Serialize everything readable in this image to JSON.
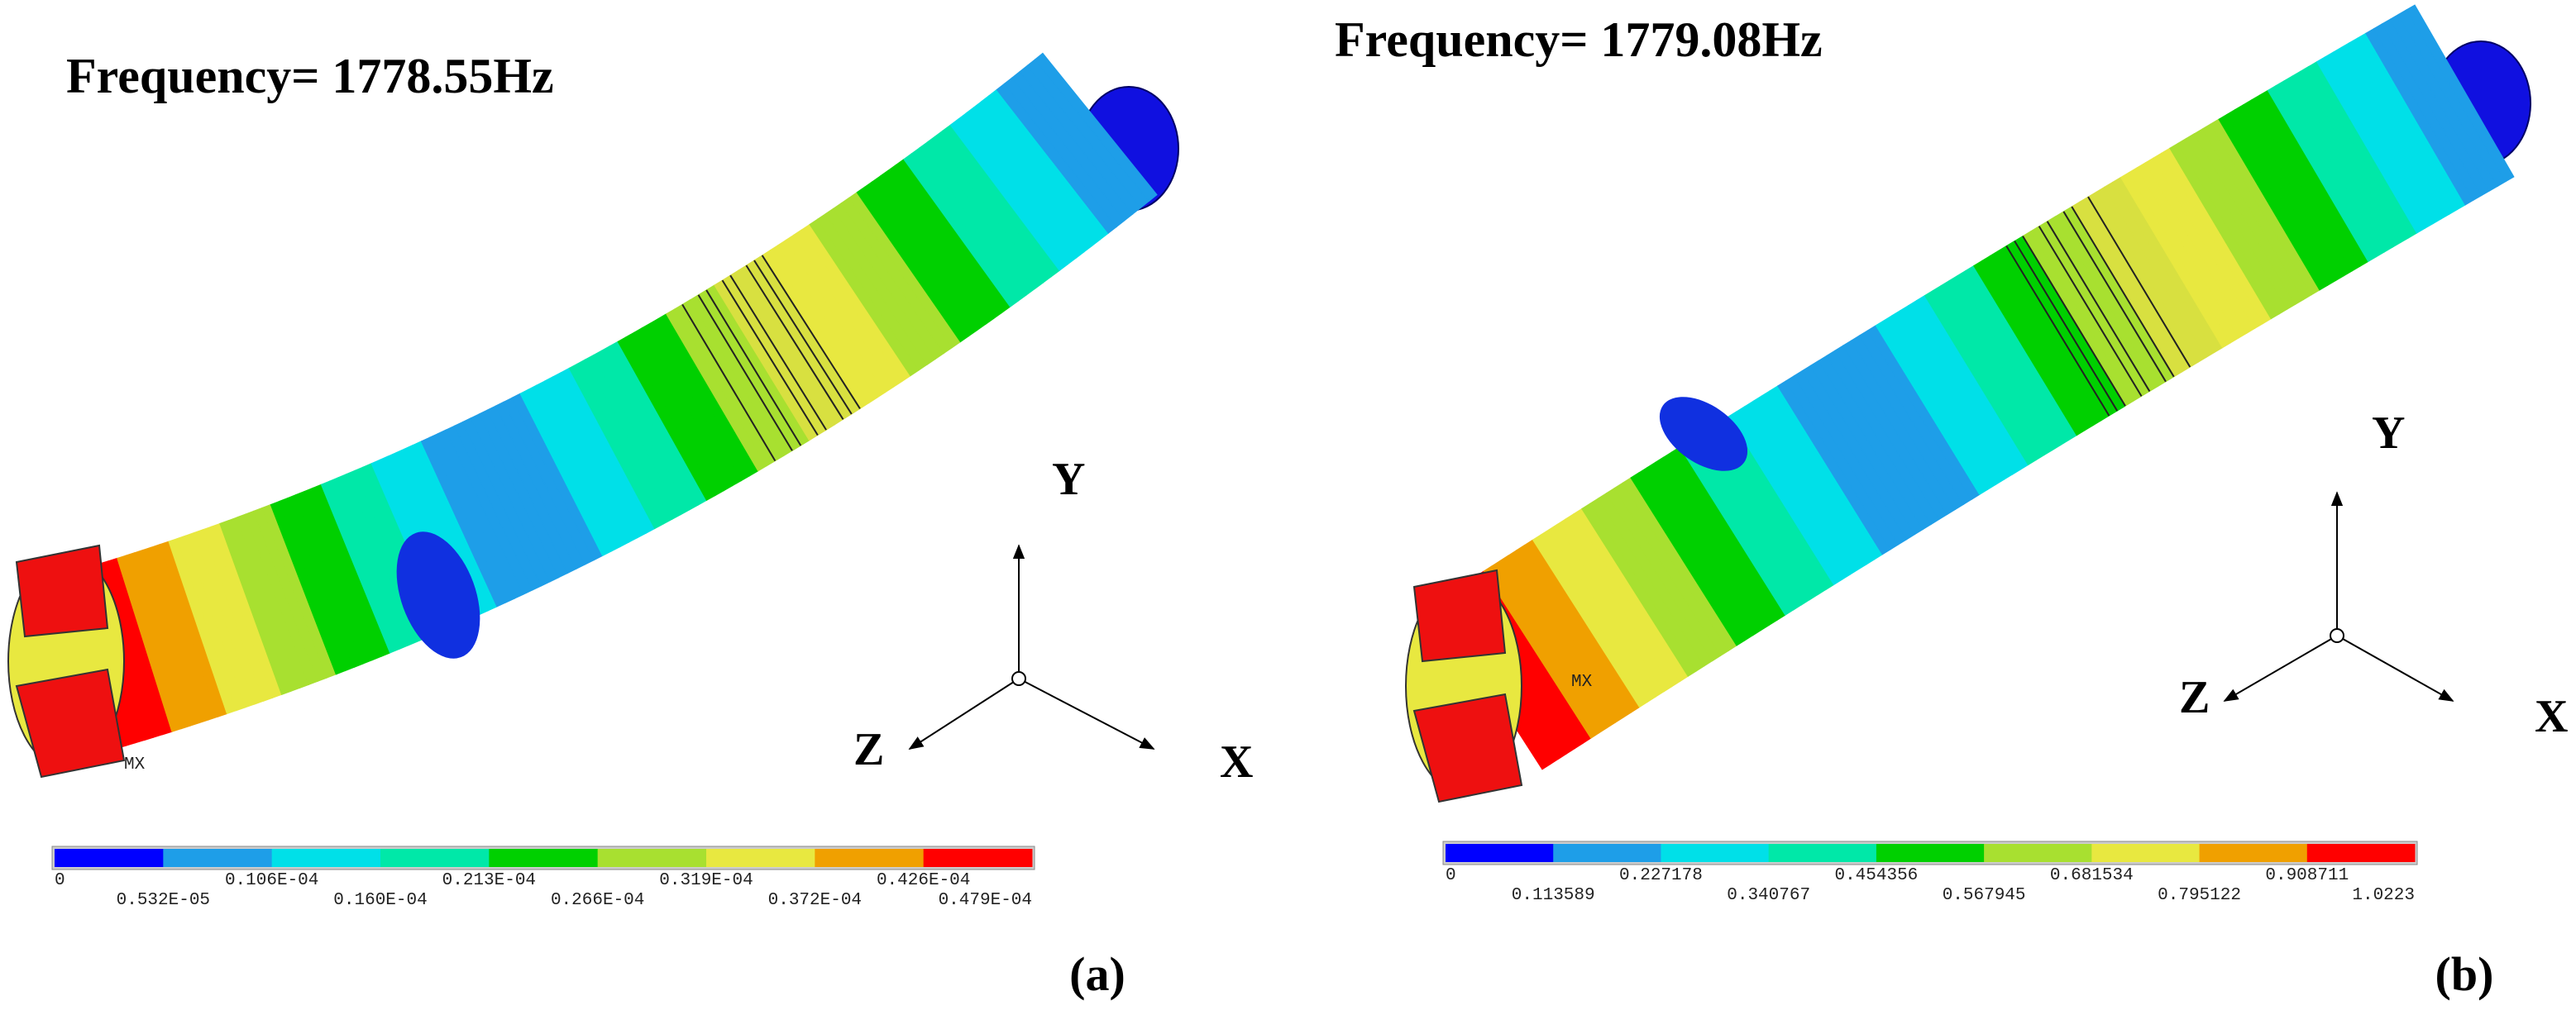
{
  "panels": [
    {
      "frequency": "Frequency= 1778.55Hz",
      "marker": "MX",
      "axes": {
        "y": "Y",
        "z": "Z",
        "x": "X"
      },
      "legend": {
        "colors": [
          "#0000ff",
          "#1e9ee8",
          "#00e0e8",
          "#00e8a8",
          "#00d000",
          "#a8e030",
          "#e8e840",
          "#f0a000",
          "#ff0000"
        ],
        "top_labels": [
          "0",
          "0.106E-04",
          "0.213E-04",
          "0.319E-04",
          "0.426E-04"
        ],
        "bottom_labels": [
          "0.532E-05",
          "0.160E-04",
          "0.266E-04",
          "0.372E-04",
          "0.479E-04"
        ]
      },
      "caption": "(a)"
    },
    {
      "frequency": "Frequency= 1779.08Hz",
      "marker": "MX",
      "axes": {
        "y": "Y",
        "z": "Z",
        "x": "X"
      },
      "legend": {
        "colors": [
          "#0000ff",
          "#1e9ee8",
          "#00e0e8",
          "#00e8a8",
          "#00d000",
          "#a8e030",
          "#e8e840",
          "#f0a000",
          "#ff0000"
        ],
        "top_labels": [
          "0",
          "0.227178",
          "0.454356",
          "0.681534",
          "0.908711"
        ],
        "bottom_labels": [
          "0.113589",
          "0.340767",
          "0.567945",
          "0.795122",
          "1.0223"
        ]
      },
      "caption": "(b)"
    }
  ]
}
